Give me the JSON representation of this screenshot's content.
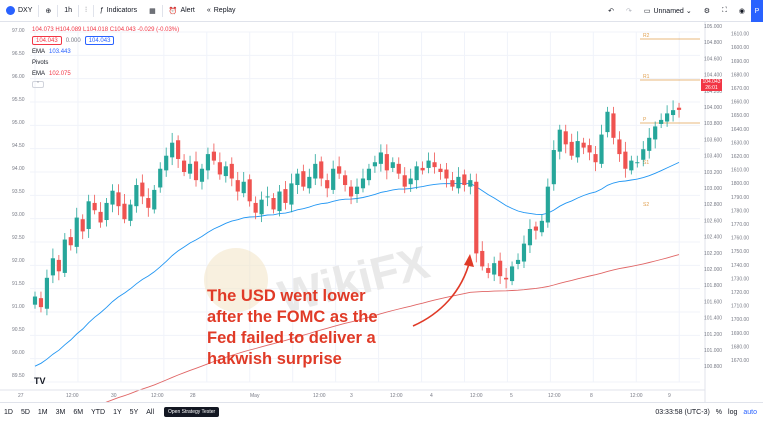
{
  "toolbar": {
    "symbol": "DXY",
    "interval": "1h",
    "indicators": "Indicators",
    "alert": "Alert",
    "replay": "Replay",
    "layout_name": "Unnamed",
    "blue_tab": "P"
  },
  "legend": {
    "ohlc": "104.073 H104.089 L104.018 C104.043 -0.029 (-0.03%)",
    "tag_sell": "104.043",
    "tag_spread": "0.000",
    "tag_buy": "104.043",
    "ema1_label": "EMA",
    "ema1_value": "103.443",
    "pivots_label": "Pivots",
    "ema2_label": "EMA",
    "ema2_value": "102.075"
  },
  "left_axis": [
    "97.00",
    "96.50",
    "96.00",
    "95.50",
    "95.00",
    "94.50",
    "94.00",
    "93.50",
    "93.00",
    "92.50",
    "92.00",
    "91.50",
    "91.00",
    "90.50",
    "90.00",
    "89.50"
  ],
  "right_axis": [
    "105.000",
    "104.800",
    "104.600",
    "104.400",
    "104.200",
    "104.000",
    "103.800",
    "103.600",
    "103.400",
    "103.200",
    "103.000",
    "102.800",
    "102.600",
    "102.400",
    "102.200",
    "102.000",
    "101.800",
    "101.600",
    "101.400",
    "101.200",
    "101.000",
    "100.800"
  ],
  "outer_axis": [
    "1620.00",
    "1610.00",
    "1600.00",
    "1690.00",
    "1680.00",
    "1670.00",
    "1660.00",
    "1650.00",
    "1640.00",
    "1630.00",
    "1620.00",
    "1610.00",
    "1800.00",
    "1790.00",
    "1780.00",
    "1770.00",
    "1760.00",
    "1750.00",
    "1740.00",
    "1730.00",
    "1720.00",
    "1710.00",
    "1700.00",
    "1690.00",
    "1680.00",
    "1670.00"
  ],
  "time_axis": [
    "27",
    "12:00",
    "30",
    "12:00",
    "28",
    "May",
    "12:00",
    "3",
    "12:00",
    "4",
    "12:00",
    "5",
    "12:00",
    "8",
    "12:00",
    "9"
  ],
  "pivot_labels": {
    "r2": "R2",
    "r1": "R1",
    "p": "P",
    "s1": "S1",
    "s2": "S2"
  },
  "last_price": {
    "price": "104.043",
    "countdown": "26:01"
  },
  "annotation": "The USD went lower after the FOMC as the Fed failed to deliver a hakwish surprise",
  "watermark": "WikiFX",
  "bottombar": {
    "ranges": [
      "1D",
      "5D",
      "1M",
      "3M",
      "6M",
      "YTD",
      "1Y",
      "5Y",
      "All"
    ],
    "strategy_tester": "Open Strategy Tester",
    "clock": "03:33:58 (UTC-3)",
    "percent": "%",
    "log": "log",
    "auto": "auto"
  },
  "colors": {
    "bull": "#26a69a",
    "bear": "#ef5350",
    "ema_fast": "#2196f3",
    "ema_slow": "#e06666",
    "annotation": "#e03a27",
    "pivot": "#e0a050"
  },
  "chart_data": {
    "type": "candlestick",
    "title": "DXY 1h",
    "price_range": [
      100.7,
      105.0
    ],
    "candles_close": [
      101.75,
      101.62,
      101.98,
      102.22,
      102.06,
      102.45,
      102.38,
      102.72,
      102.55,
      102.92,
      102.81,
      102.66,
      102.9,
      103.05,
      102.86,
      102.7,
      102.88,
      103.12,
      102.98,
      102.84,
      103.06,
      103.32,
      103.48,
      103.64,
      103.44,
      103.28,
      103.38,
      103.18,
      103.32,
      103.5,
      103.42,
      103.25,
      103.35,
      103.2,
      103.04,
      103.16,
      102.92,
      102.78,
      102.94,
      102.98,
      102.82,
      103.04,
      102.9,
      103.14,
      103.26,
      103.1,
      103.22,
      103.38,
      103.2,
      103.08,
      103.32,
      103.26,
      103.12,
      102.98,
      103.1,
      103.2,
      103.32,
      103.4,
      103.52,
      103.3,
      103.4,
      103.26,
      103.1,
      103.2,
      103.35,
      103.3,
      103.42,
      103.34,
      103.28,
      103.2,
      103.1,
      103.22,
      103.12,
      103.18,
      102.28,
      102.12,
      102.04,
      102.16,
      102.0,
      101.96,
      102.12,
      102.2,
      102.4,
      102.58,
      102.56,
      102.68,
      103.1,
      103.55,
      103.8,
      103.62,
      103.48,
      103.66,
      103.58,
      103.52,
      103.4,
      103.74,
      104.02,
      103.7,
      103.5,
      103.32,
      103.42,
      103.4,
      103.56,
      103.7,
      103.84,
      103.92,
      104.0,
      104.04,
      104.043
    ],
    "ema_fast_end": 103.443,
    "ema_slow_end": 102.075
  }
}
